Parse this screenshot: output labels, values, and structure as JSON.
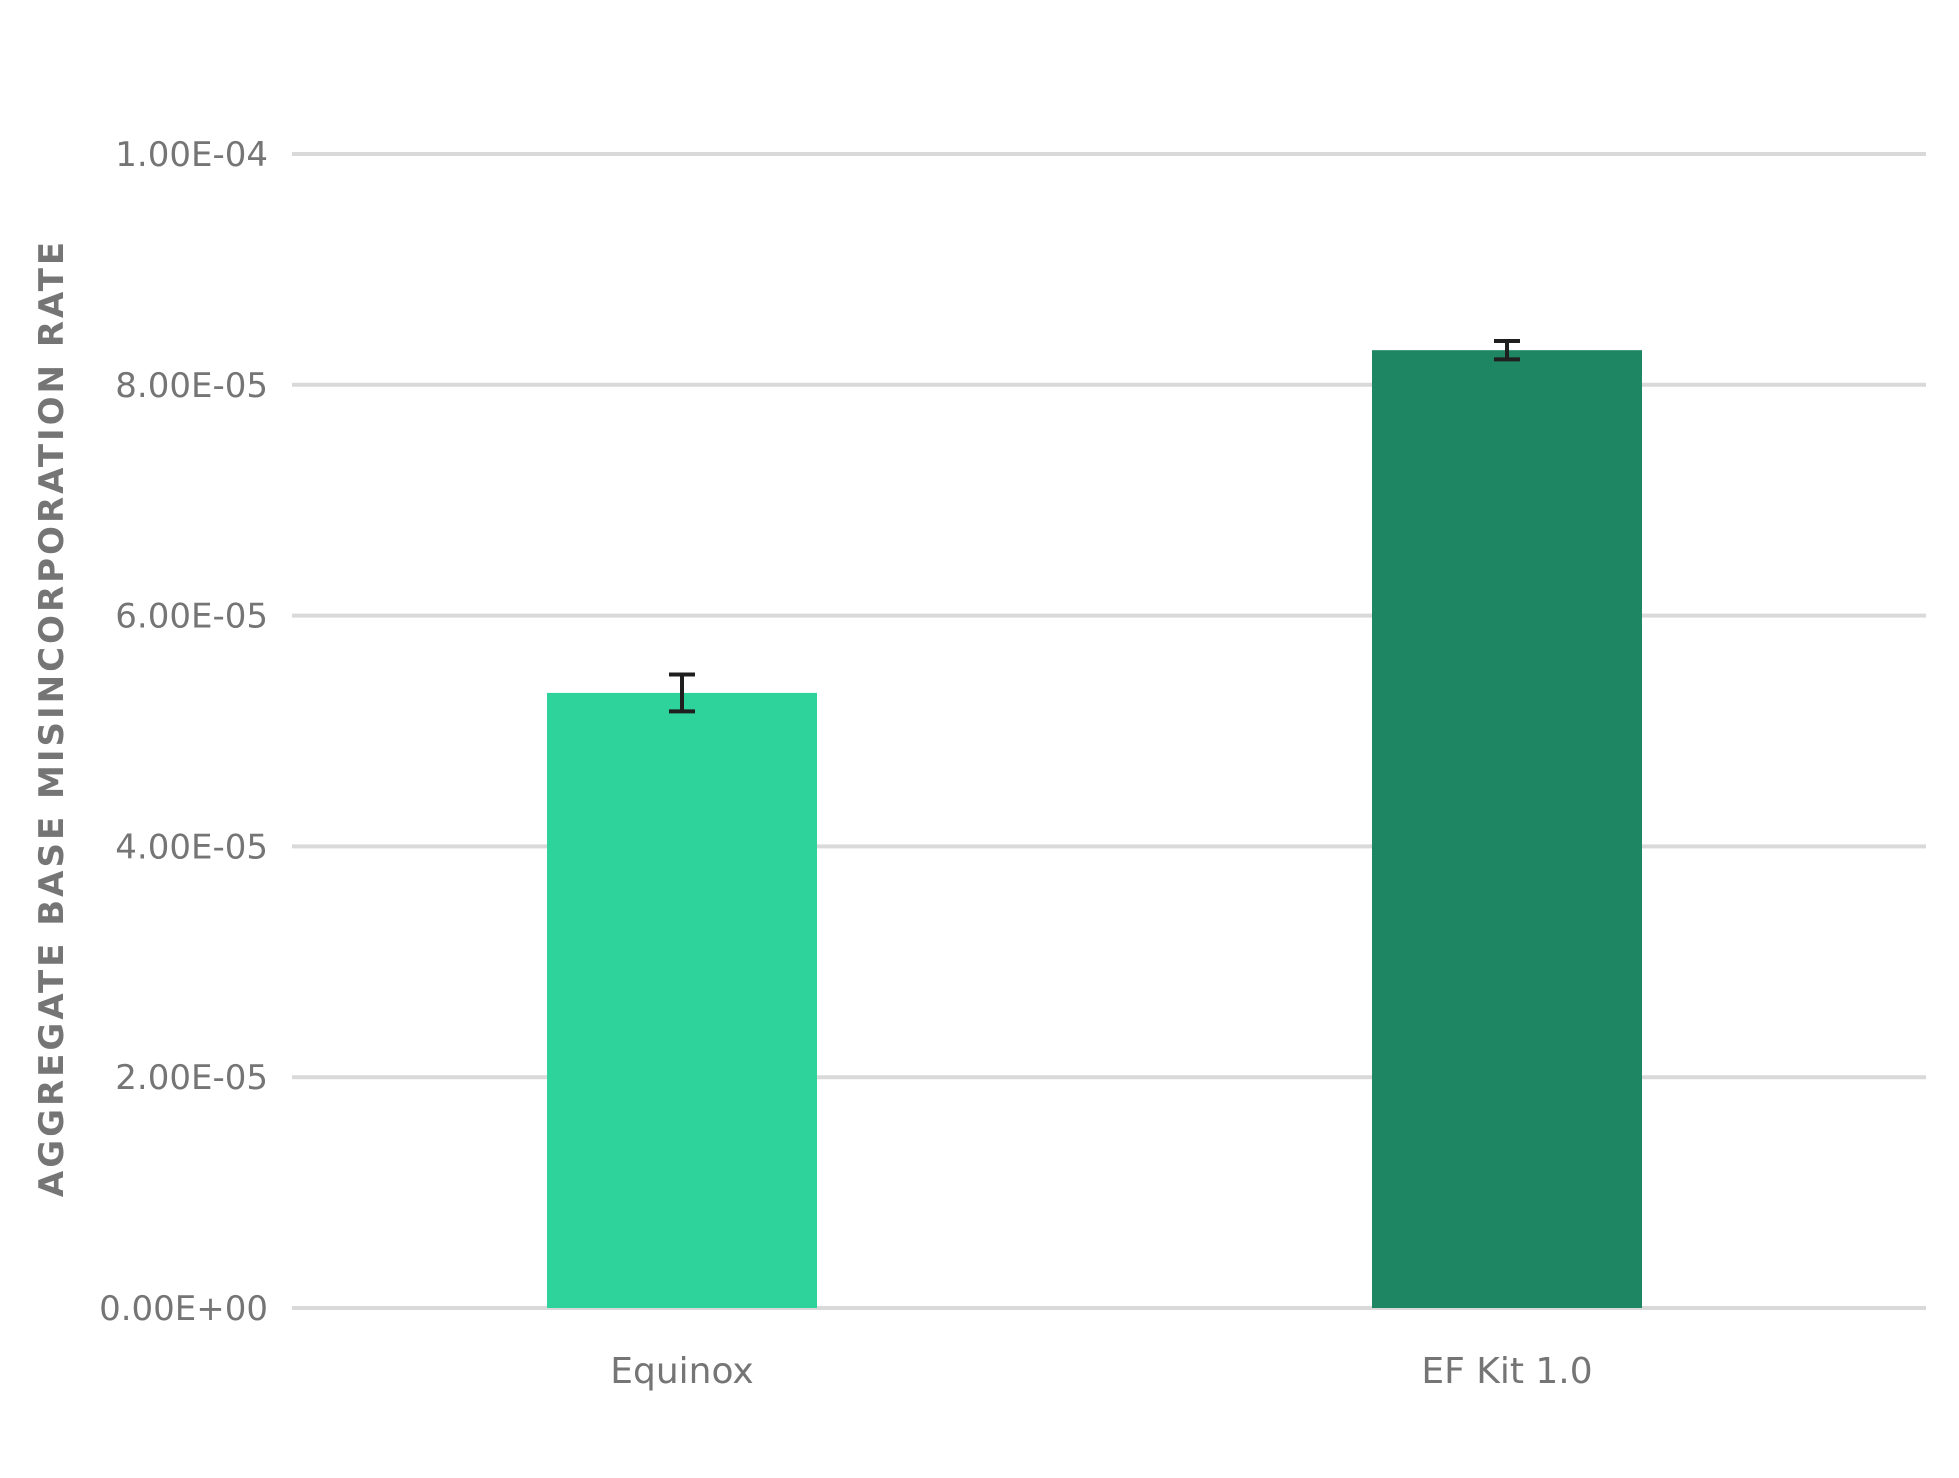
{
  "chart_data": {
    "type": "bar",
    "title": "",
    "xlabel": "",
    "ylabel": "AGGREGATE BASE MISINCORPORATION RATE",
    "categories": [
      "Equinox",
      "EF Kit 1.0"
    ],
    "values": [
      5.33e-05,
      8.3e-05
    ],
    "error": [
      1.6e-06,
      8e-07
    ],
    "colors": [
      "#2dd39b",
      "#1f8663"
    ],
    "ylim": [
      0,
      0.0001
    ],
    "yticks": [
      0,
      2e-05,
      4e-05,
      6e-05,
      8e-05,
      0.0001
    ],
    "ytick_labels": [
      "0.00E+00",
      "2.00E-05",
      "4.00E-05",
      "6.00E-05",
      "8.00E-05",
      "1.00E-04"
    ],
    "grid": true,
    "legend": "none"
  }
}
